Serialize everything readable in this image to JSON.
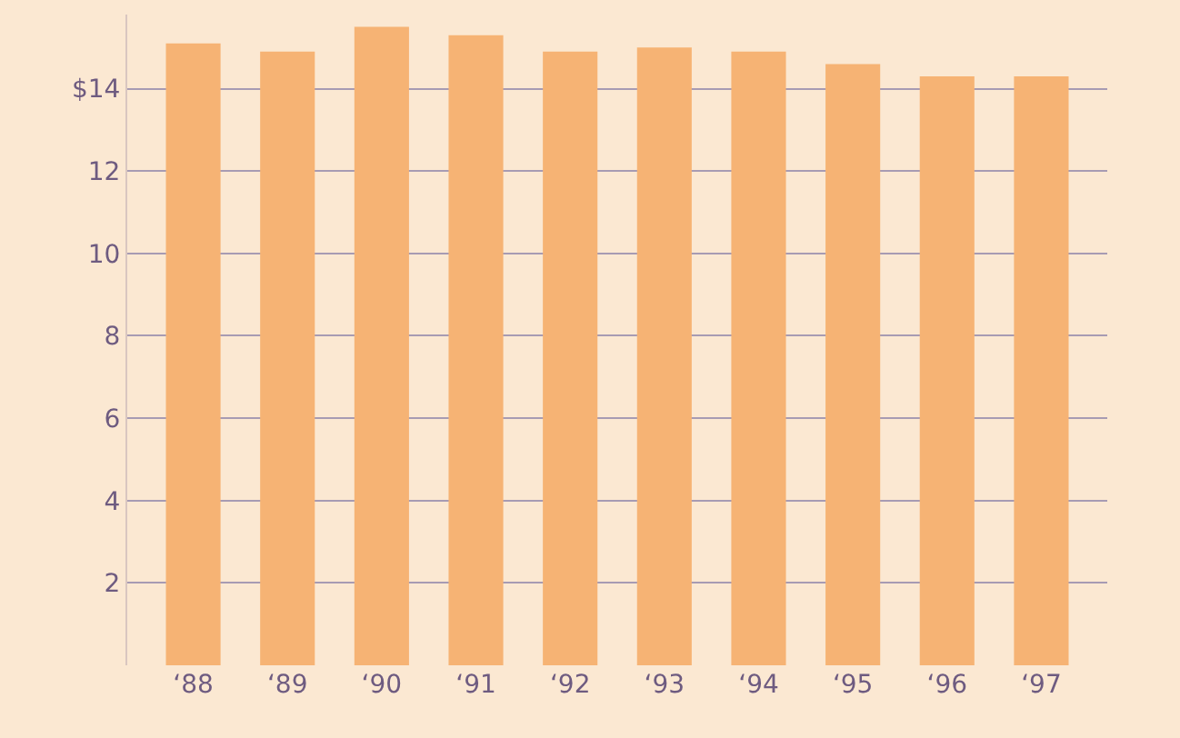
{
  "chart_data": {
    "type": "bar",
    "categories": [
      "‘88",
      "‘89",
      "‘90",
      "‘91",
      "‘92",
      "‘93",
      "‘94",
      "‘95",
      "‘96",
      "‘97"
    ],
    "values": [
      15.1,
      14.9,
      15.5,
      15.3,
      14.9,
      15.0,
      14.9,
      14.6,
      14.3,
      14.3
    ],
    "color": "#f6b374",
    "ylim": [
      0,
      15.8
    ],
    "yticks": [
      2,
      4,
      6,
      8,
      10,
      12,
      {
        "value": 14,
        "label": "$14"
      }
    ],
    "grid": "y"
  }
}
